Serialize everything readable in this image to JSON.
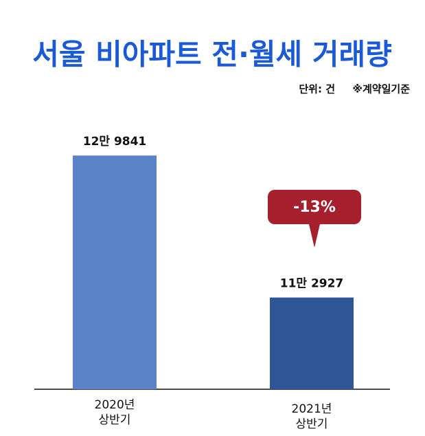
{
  "chart_data": {
    "type": "bar",
    "title": "서울 비아파트 전·월세 거래량",
    "unit": "단위: 건",
    "note": "※계약일기준",
    "categories": [
      "2020년\n상반기",
      "2021년\n상반기"
    ],
    "values": [
      129841,
      112927
    ],
    "value_labels": [
      "12만 9841",
      "11만 2927"
    ],
    "colors": [
      "#5a83c8",
      "#2e5596"
    ],
    "ylim": [
      102000,
      136000
    ],
    "annotation": "-13%",
    "annotation_color": "#a51f2c",
    "title_color": "#1b5ad6"
  }
}
